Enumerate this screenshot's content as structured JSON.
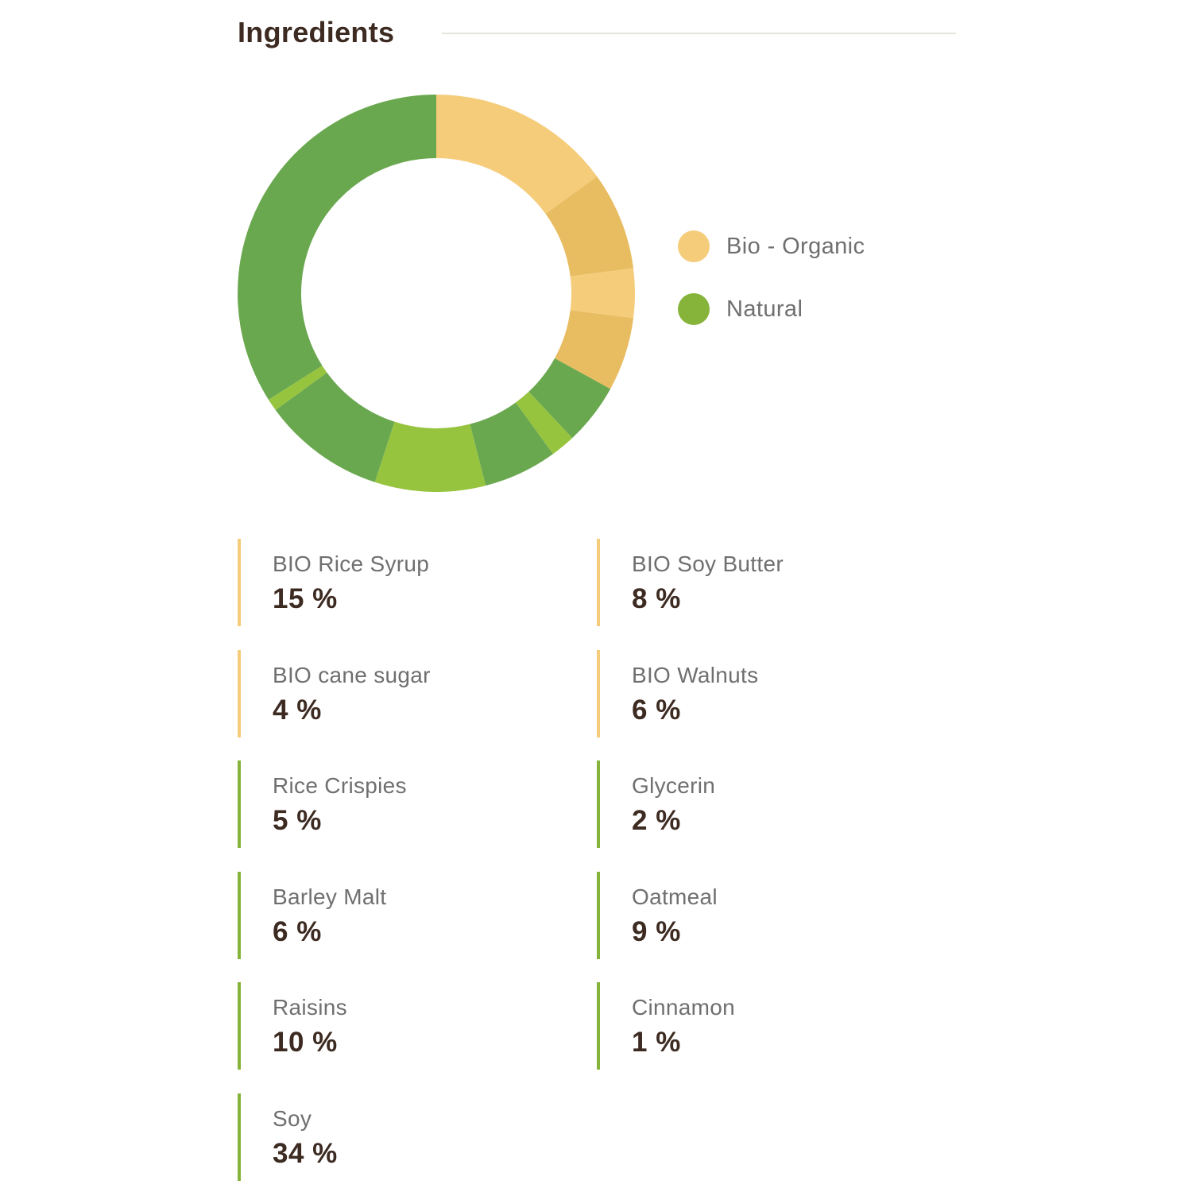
{
  "section": {
    "title": "Ingredients"
  },
  "colors": {
    "organic": "#f5cc7a",
    "natural": "#86b43b"
  },
  "legend": [
    {
      "label": "Bio - Organic",
      "color": "#f5cc7a"
    },
    {
      "label": "Natural",
      "color": "#86b43b"
    }
  ],
  "chart_data": {
    "type": "pie",
    "donut": true,
    "title": "",
    "legend_position": "right",
    "categories": [
      "Bio - Organic",
      "Natural"
    ],
    "slices": [
      {
        "label": "BIO Rice Syrup",
        "value": 15,
        "category": "Bio - Organic",
        "color": "#f5cc7a"
      },
      {
        "label": "BIO Soy Butter",
        "value": 8,
        "category": "Bio - Organic",
        "color": "#e8bd62"
      },
      {
        "label": "BIO cane sugar",
        "value": 4,
        "category": "Bio - Organic",
        "color": "#f5cc7a"
      },
      {
        "label": "BIO Walnuts",
        "value": 6,
        "category": "Bio - Organic",
        "color": "#e8bd62"
      },
      {
        "label": "Rice Crispies",
        "value": 5,
        "category": "Natural",
        "color": "#6aa84f"
      },
      {
        "label": "Glycerin",
        "value": 2,
        "category": "Natural",
        "color": "#97c43f"
      },
      {
        "label": "Barley Malt",
        "value": 6,
        "category": "Natural",
        "color": "#6aa84f"
      },
      {
        "label": "Oatmeal",
        "value": 9,
        "category": "Natural",
        "color": "#97c43f"
      },
      {
        "label": "Raisins",
        "value": 10,
        "category": "Natural",
        "color": "#6aa84f"
      },
      {
        "label": "Cinnamon",
        "value": 1,
        "category": "Natural",
        "color": "#97c43f"
      },
      {
        "label": "Soy",
        "value": 34,
        "category": "Natural",
        "color": "#6aa84f"
      }
    ]
  },
  "ingredients": [
    {
      "name": "BIO Rice Syrup",
      "value": "15 %",
      "type": "organic"
    },
    {
      "name": "BIO Soy Butter",
      "value": "8 %",
      "type": "organic"
    },
    {
      "name": "BIO cane sugar",
      "value": "4 %",
      "type": "organic"
    },
    {
      "name": "BIO Walnuts",
      "value": "6 %",
      "type": "organic"
    },
    {
      "name": "Rice Crispies",
      "value": "5 %",
      "type": "natural"
    },
    {
      "name": "Glycerin",
      "value": "2 %",
      "type": "natural"
    },
    {
      "name": "Barley Malt",
      "value": "6 %",
      "type": "natural"
    },
    {
      "name": "Oatmeal",
      "value": "9 %",
      "type": "natural"
    },
    {
      "name": "Raisins",
      "value": "10 %",
      "type": "natural"
    },
    {
      "name": "Cinnamon",
      "value": "1 %",
      "type": "natural"
    },
    {
      "name": "Soy",
      "value": "34 %",
      "type": "natural"
    }
  ]
}
